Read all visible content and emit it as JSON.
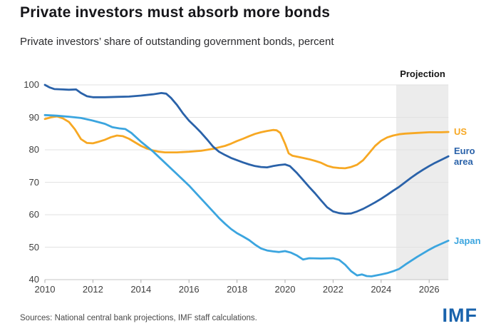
{
  "header": {
    "title": "Private investors must absorb more bonds",
    "subtitle": "Private investors’ share of outstanding government bonds, percent"
  },
  "footer": {
    "sources": "Sources: National central bank projections, IMF staff calculations.",
    "logo": "IMF",
    "logo_color": "#1963ac"
  },
  "chart_data": {
    "type": "line",
    "title": "Private investors must absorb more bonds",
    "subtitle": "Private investors’ share of outstanding government bonds, percent",
    "xlabel": "",
    "ylabel": "percent",
    "xlim": [
      2010,
      2026.8
    ],
    "ylim": [
      40,
      100
    ],
    "yticks": [
      100,
      90,
      80,
      70,
      60,
      50,
      40
    ],
    "xticks": [
      2010,
      2012,
      2014,
      2016,
      2018,
      2020,
      2022,
      2024,
      2026
    ],
    "grid": true,
    "legend_position": "right",
    "grid_color": "#e2e2e2",
    "baseline_color": "#c6c6c6",
    "tick_color": "#adadad",
    "projection": {
      "label": "Projection",
      "start": 2024.63,
      "end": 2026.8,
      "band_color": "#ececec"
    },
    "series": [
      {
        "id": "us",
        "name": "US",
        "label": "US",
        "color": "#f7a823",
        "points": [
          [
            2010,
            89.5
          ],
          [
            2010.25,
            90.0
          ],
          [
            2010.5,
            90.3
          ],
          [
            2010.75,
            89.7
          ],
          [
            2011,
            88.6
          ],
          [
            2011.25,
            86.3
          ],
          [
            2011.5,
            83.3
          ],
          [
            2011.75,
            82.1
          ],
          [
            2012,
            82.0
          ],
          [
            2012.25,
            82.5
          ],
          [
            2012.5,
            83.1
          ],
          [
            2012.75,
            83.9
          ],
          [
            2013,
            84.4
          ],
          [
            2013.25,
            84.2
          ],
          [
            2013.5,
            83.4
          ],
          [
            2013.75,
            82.3
          ],
          [
            2014,
            81.2
          ],
          [
            2014.25,
            80.4
          ],
          [
            2014.5,
            79.8
          ],
          [
            2014.75,
            79.4
          ],
          [
            2015,
            79.2
          ],
          [
            2015.5,
            79.2
          ],
          [
            2016,
            79.4
          ],
          [
            2016.5,
            79.7
          ],
          [
            2017,
            80.3
          ],
          [
            2017.5,
            81.2
          ],
          [
            2017.75,
            81.9
          ],
          [
            2018,
            82.7
          ],
          [
            2018.25,
            83.4
          ],
          [
            2018.5,
            84.2
          ],
          [
            2018.75,
            84.9
          ],
          [
            2019,
            85.4
          ],
          [
            2019.25,
            85.8
          ],
          [
            2019.5,
            86.1
          ],
          [
            2019.65,
            86.0
          ],
          [
            2019.8,
            85.2
          ],
          [
            2020,
            81.9
          ],
          [
            2020.15,
            78.9
          ],
          [
            2020.3,
            78.2
          ],
          [
            2020.5,
            77.9
          ],
          [
            2020.75,
            77.5
          ],
          [
            2021,
            77.1
          ],
          [
            2021.25,
            76.6
          ],
          [
            2021.5,
            76.0
          ],
          [
            2021.75,
            75.1
          ],
          [
            2022,
            74.6
          ],
          [
            2022.25,
            74.4
          ],
          [
            2022.5,
            74.3
          ],
          [
            2022.75,
            74.7
          ],
          [
            2023,
            75.4
          ],
          [
            2023.25,
            76.8
          ],
          [
            2023.5,
            79.0
          ],
          [
            2023.75,
            81.2
          ],
          [
            2024,
            82.8
          ],
          [
            2024.25,
            83.8
          ],
          [
            2024.5,
            84.4
          ],
          [
            2024.75,
            84.8
          ],
          [
            2025,
            85.0
          ],
          [
            2025.5,
            85.2
          ],
          [
            2026,
            85.4
          ],
          [
            2026.5,
            85.4
          ],
          [
            2026.8,
            85.5
          ]
        ]
      },
      {
        "id": "euro-area",
        "name": "Euro area",
        "label": "Euro\narea",
        "color": "#2a62a9",
        "points": [
          [
            2010,
            100
          ],
          [
            2010.2,
            99.2
          ],
          [
            2010.4,
            98.7
          ],
          [
            2010.75,
            98.6
          ],
          [
            2011,
            98.5
          ],
          [
            2011.3,
            98.6
          ],
          [
            2011.5,
            97.5
          ],
          [
            2011.75,
            96.5
          ],
          [
            2012,
            96.2
          ],
          [
            2012.5,
            96.2
          ],
          [
            2013,
            96.3
          ],
          [
            2013.5,
            96.4
          ],
          [
            2014,
            96.7
          ],
          [
            2014.5,
            97.1
          ],
          [
            2014.85,
            97.5
          ],
          [
            2015.05,
            97.3
          ],
          [
            2015.25,
            96.0
          ],
          [
            2015.5,
            93.8
          ],
          [
            2015.75,
            91.2
          ],
          [
            2016,
            89.0
          ],
          [
            2016.25,
            87.2
          ],
          [
            2016.5,
            85.3
          ],
          [
            2016.75,
            83.2
          ],
          [
            2017,
            81.0
          ],
          [
            2017.25,
            79.4
          ],
          [
            2017.5,
            78.4
          ],
          [
            2017.75,
            77.5
          ],
          [
            2018,
            76.8
          ],
          [
            2018.25,
            76.1
          ],
          [
            2018.5,
            75.5
          ],
          [
            2018.75,
            75.0
          ],
          [
            2019,
            74.7
          ],
          [
            2019.25,
            74.6
          ],
          [
            2019.5,
            75.0
          ],
          [
            2019.75,
            75.3
          ],
          [
            2020,
            75.5
          ],
          [
            2020.2,
            75.0
          ],
          [
            2020.5,
            72.8
          ],
          [
            2020.75,
            70.7
          ],
          [
            2021,
            68.6
          ],
          [
            2021.25,
            66.6
          ],
          [
            2021.5,
            64.4
          ],
          [
            2021.75,
            62.3
          ],
          [
            2022,
            61.0
          ],
          [
            2022.25,
            60.5
          ],
          [
            2022.5,
            60.3
          ],
          [
            2022.75,
            60.4
          ],
          [
            2023,
            61.0
          ],
          [
            2023.25,
            61.8
          ],
          [
            2023.5,
            62.8
          ],
          [
            2023.75,
            63.8
          ],
          [
            2024,
            64.9
          ],
          [
            2024.25,
            66.1
          ],
          [
            2024.5,
            67.4
          ],
          [
            2024.75,
            68.6
          ],
          [
            2025,
            70.0
          ],
          [
            2025.25,
            71.4
          ],
          [
            2025.5,
            72.7
          ],
          [
            2025.75,
            73.9
          ],
          [
            2026,
            75.0
          ],
          [
            2026.25,
            76.0
          ],
          [
            2026.5,
            76.9
          ],
          [
            2026.8,
            78.0
          ]
        ]
      },
      {
        "id": "japan",
        "name": "Japan",
        "label": "Japan",
        "color": "#3ba5df",
        "points": [
          [
            2010,
            90.7
          ],
          [
            2010.5,
            90.5
          ],
          [
            2011,
            90.2
          ],
          [
            2011.5,
            89.8
          ],
          [
            2012,
            89.0
          ],
          [
            2012.5,
            88.0
          ],
          [
            2012.8,
            87.0
          ],
          [
            2013.1,
            86.6
          ],
          [
            2013.35,
            86.4
          ],
          [
            2013.6,
            85.2
          ],
          [
            2014,
            82.5
          ],
          [
            2014.5,
            79.5
          ],
          [
            2015,
            76.0
          ],
          [
            2015.5,
            72.5
          ],
          [
            2016,
            69.0
          ],
          [
            2016.5,
            65.0
          ],
          [
            2017,
            61.0
          ],
          [
            2017.25,
            59.0
          ],
          [
            2017.5,
            57.2
          ],
          [
            2017.75,
            55.6
          ],
          [
            2018,
            54.3
          ],
          [
            2018.25,
            53.3
          ],
          [
            2018.5,
            52.2
          ],
          [
            2018.75,
            50.8
          ],
          [
            2019,
            49.6
          ],
          [
            2019.25,
            49.0
          ],
          [
            2019.5,
            48.7
          ],
          [
            2019.75,
            48.5
          ],
          [
            2020,
            48.8
          ],
          [
            2020.25,
            48.3
          ],
          [
            2020.5,
            47.4
          ],
          [
            2020.75,
            46.2
          ],
          [
            2021,
            46.6
          ],
          [
            2021.5,
            46.5
          ],
          [
            2022,
            46.6
          ],
          [
            2022.25,
            46.1
          ],
          [
            2022.5,
            44.6
          ],
          [
            2022.75,
            42.6
          ],
          [
            2023,
            41.3
          ],
          [
            2023.2,
            41.6
          ],
          [
            2023.4,
            41.1
          ],
          [
            2023.6,
            41.0
          ],
          [
            2024,
            41.6
          ],
          [
            2024.25,
            42.0
          ],
          [
            2024.5,
            42.6
          ],
          [
            2024.75,
            43.3
          ],
          [
            2025,
            44.6
          ],
          [
            2025.25,
            45.8
          ],
          [
            2025.5,
            47.0
          ],
          [
            2025.75,
            48.1
          ],
          [
            2026,
            49.2
          ],
          [
            2026.25,
            50.2
          ],
          [
            2026.5,
            51.0
          ],
          [
            2026.8,
            52.0
          ]
        ]
      }
    ]
  }
}
